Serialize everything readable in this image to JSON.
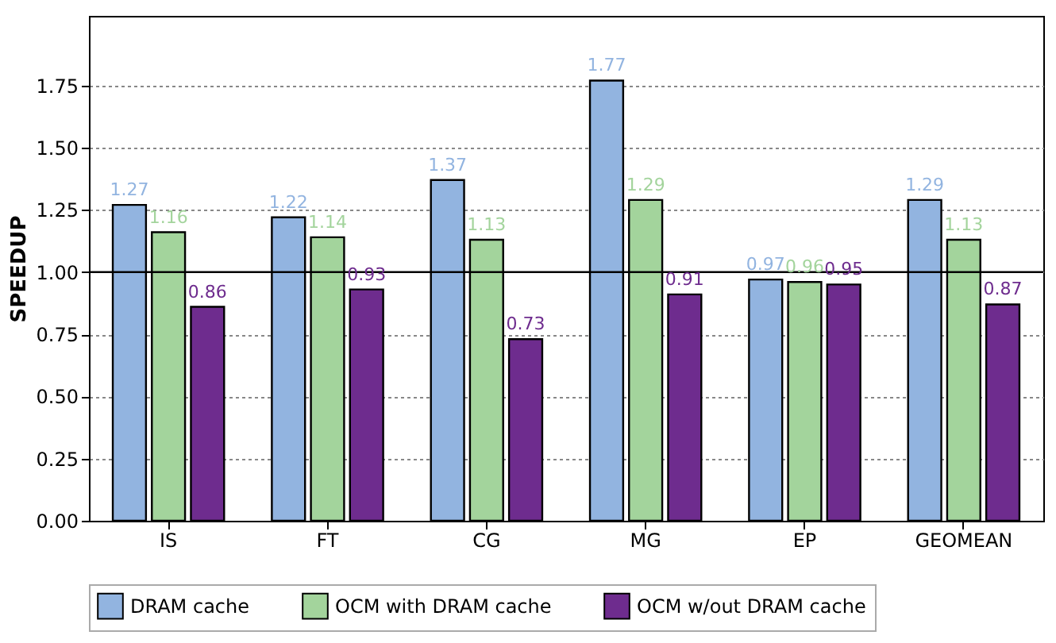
{
  "chart_data": {
    "type": "bar",
    "ylabel": "SPEEDUP",
    "categories": [
      "IS",
      "FT",
      "CG",
      "MG",
      "EP",
      "GEOMEAN"
    ],
    "series": [
      {
        "name": "DRAM cache",
        "color": "#92b4e0",
        "values": [
          1.27,
          1.22,
          1.37,
          1.77,
          0.97,
          1.29
        ]
      },
      {
        "name": "OCM with DRAM cache",
        "color": "#a3d49c",
        "values": [
          1.16,
          1.14,
          1.13,
          1.29,
          0.96,
          1.13
        ]
      },
      {
        "name": "OCM w/out DRAM cache",
        "color": "#6e2c8e",
        "values": [
          0.86,
          0.93,
          0.73,
          0.91,
          0.95,
          0.87
        ]
      }
    ],
    "ylim": [
      0,
      2.03
    ],
    "yticks": [
      {
        "value": 0,
        "label": "0.00"
      },
      0.25,
      {
        "value": 0.5,
        "label": "0.50"
      },
      0.75,
      {
        "value": 1.0,
        "label": "1.00"
      },
      1.25,
      {
        "value": 1.5,
        "label": "1.50"
      },
      1.75
    ],
    "ref_lines": [
      {
        "axis": "y",
        "value": 1.0,
        "color": "#000000",
        "line_style": "solid"
      }
    ],
    "grid": "y",
    "legend": "bottom",
    "data_labels": true
  }
}
